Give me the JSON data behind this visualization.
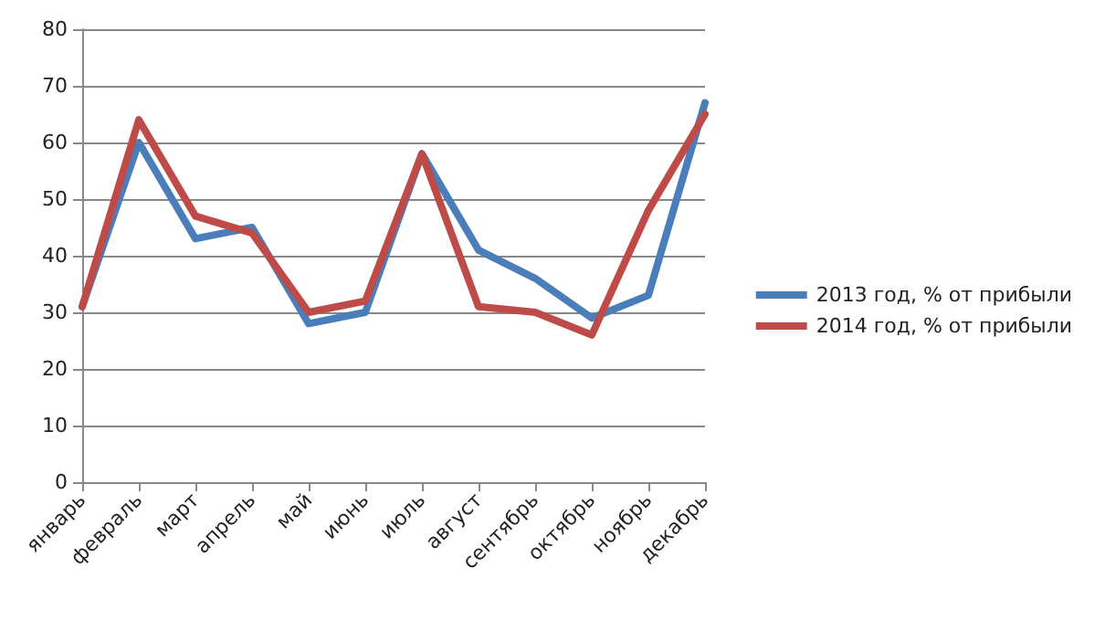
{
  "chart_data": {
    "type": "line",
    "categories": [
      "январь",
      "февраль",
      "март",
      "апрель",
      "май",
      "июнь",
      "июль",
      "август",
      "сентябрь",
      "октябрь",
      "ноябрь",
      "декабрь"
    ],
    "series": [
      {
        "name": "2013 год, % от прибыли",
        "color": "#4a7ebb",
        "values": [
          31,
          60,
          43,
          45,
          28,
          30,
          58,
          41,
          36,
          29,
          33,
          67
        ]
      },
      {
        "name": "2014 год, % от прибыли",
        "color": "#be4b48",
        "values": [
          31,
          64,
          47,
          44,
          30,
          32,
          58,
          31,
          30,
          26,
          48,
          65
        ]
      }
    ],
    "ylim": [
      0,
      80
    ],
    "yticks": [
      0,
      10,
      20,
      30,
      40,
      50,
      60,
      70,
      80
    ],
    "grid": "y",
    "legend": "right",
    "marker": "none",
    "line_style": "solid"
  }
}
